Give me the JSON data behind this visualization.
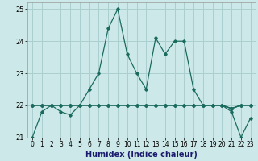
{
  "xlabel": "Humidex (Indice chaleur)",
  "bg_color": "#cce8e8",
  "line_color": "#1a6b5e",
  "grid_color": "#aacfcf",
  "xlim": [
    -0.5,
    23.5
  ],
  "ylim": [
    21.0,
    25.2
  ],
  "yticks": [
    21,
    22,
    23,
    24,
    25
  ],
  "xticks": [
    0,
    1,
    2,
    3,
    4,
    5,
    6,
    7,
    8,
    9,
    10,
    11,
    12,
    13,
    14,
    15,
    16,
    17,
    18,
    19,
    20,
    21,
    22,
    23
  ],
  "series": [
    [
      21.0,
      21.8,
      22.0,
      21.8,
      21.7,
      22.0,
      22.5,
      23.0,
      24.4,
      25.0,
      23.6,
      23.0,
      22.5,
      24.1,
      23.6,
      24.0,
      24.0,
      22.5,
      22.0,
      22.0,
      22.0,
      21.8,
      21.0,
      21.6
    ],
    [
      22.0,
      22.0,
      22.0,
      22.0,
      22.0,
      22.0,
      22.0,
      22.0,
      22.0,
      22.0,
      22.0,
      22.0,
      22.0,
      22.0,
      22.0,
      22.0,
      22.0,
      22.0,
      22.0,
      22.0,
      22.0,
      21.9,
      22.0,
      22.0
    ],
    [
      22.0,
      22.0,
      22.0,
      22.0,
      22.0,
      22.0,
      22.0,
      22.0,
      22.0,
      22.0,
      22.0,
      22.0,
      22.0,
      22.0,
      22.0,
      22.0,
      22.0,
      22.0,
      22.0,
      22.0,
      22.0,
      21.9,
      22.0,
      22.0
    ],
    [
      22.0,
      22.0,
      22.0,
      22.0,
      22.0,
      22.0,
      22.0,
      22.0,
      22.0,
      22.0,
      22.0,
      22.0,
      22.0,
      22.0,
      22.0,
      22.0,
      22.0,
      22.0,
      22.0,
      22.0,
      22.0,
      21.9,
      22.0,
      22.0
    ]
  ],
  "marker": "D",
  "markersize": 1.8,
  "linewidth": 0.9,
  "xlabel_fontsize": 7,
  "xlabel_color": "#1a1a6e",
  "tick_fontsize": 5.5
}
